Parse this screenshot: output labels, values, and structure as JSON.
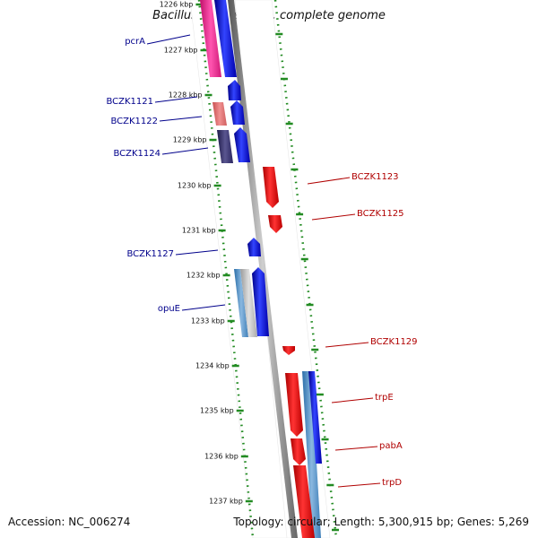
{
  "title": "Bacillus cereus E33L, complete genome",
  "footer": {
    "accession": "Accession: NC_006274",
    "summary": "Topology: circular; Length: 5,300,915 bp; Genes: 5,269"
  },
  "colors": {
    "forward_gene": "#0000ee",
    "reverse_gene": "#ee0000",
    "forward_label": "#00008b",
    "reverse_label": "#b00000",
    "tick": "#228b22",
    "backbone": "#888888"
  },
  "ticks": [
    "1226 kbp",
    "1227 kbp",
    "1228 kbp",
    "1229 kbp",
    "1230 kbp",
    "1231 kbp",
    "1232 kbp",
    "1233 kbp",
    "1234 kbp",
    "1235 kbp",
    "1236 kbp",
    "1237 kbp"
  ],
  "forward_labels": [
    "pcrA",
    "BCZK1121",
    "BCZK1122",
    "BCZK1124",
    "BCZK1127",
    "opuE"
  ],
  "reverse_labels": [
    "BCZK1123",
    "BCZK1125",
    "BCZK1129",
    "trpE",
    "pabA",
    "trpD"
  ]
}
